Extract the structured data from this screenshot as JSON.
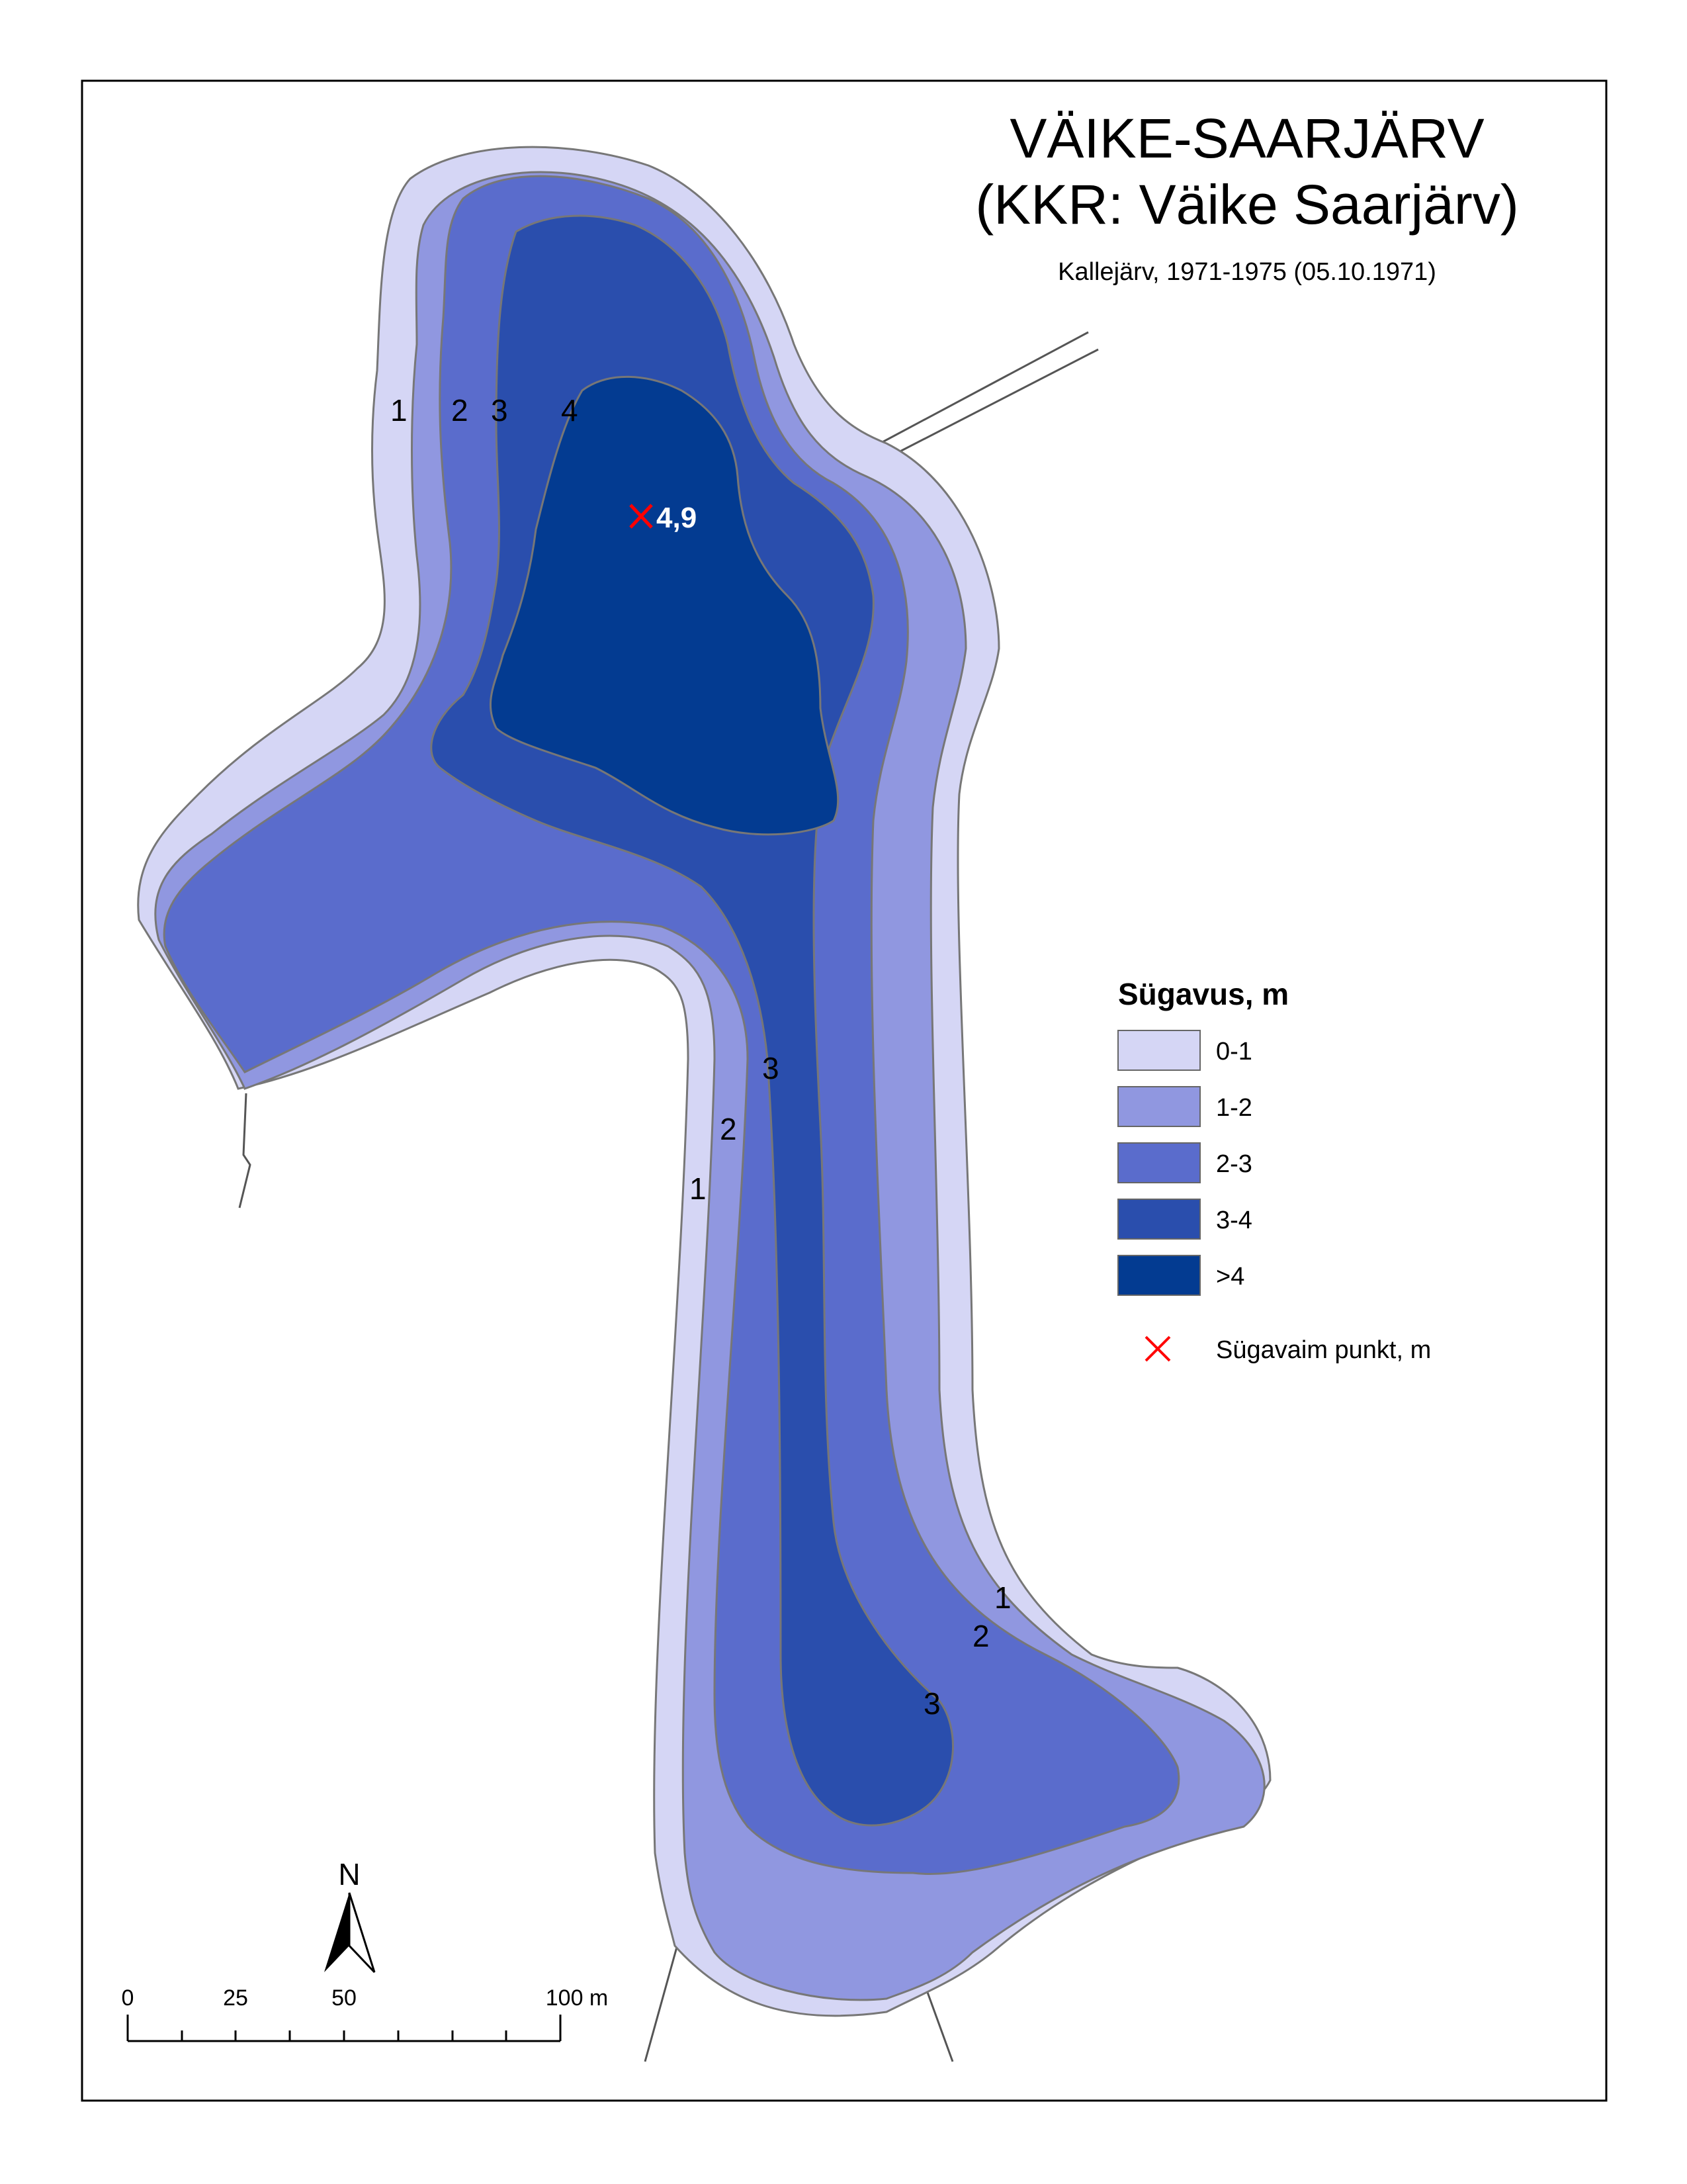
{
  "map": {
    "title": "VÄIKE-SAARJÄRV",
    "subtitle": "(KKR: Väike Saarjärv)",
    "source": "Kallejärv, 1971-1975 (05.10.1971)"
  },
  "deepest_point": {
    "label": "4,9",
    "depth_m": 4.9
  },
  "contour_labels": {
    "north": [
      "1",
      "2",
      "3",
      "4"
    ],
    "middle": [
      "3",
      "2",
      "1"
    ],
    "south": [
      "1",
      "2",
      "3"
    ]
  },
  "legend": {
    "title": "Sügavus, m",
    "classes": [
      {
        "label": "0-1",
        "color": "#d5d6f5"
      },
      {
        "label": "1-2",
        "color": "#9097e0"
      },
      {
        "label": "2-3",
        "color": "#5a6ccc"
      },
      {
        "label": "3-4",
        "color": "#2a4ead"
      },
      {
        "label": ">4",
        "color": "#033b91"
      }
    ],
    "deepest_point_label": "Sügavaim punkt, m",
    "deepest_point_color": "#ff0000"
  },
  "north_arrow": {
    "label": "N"
  },
  "scale_bar": {
    "ticks": [
      "0",
      "25",
      "50",
      "100 m"
    ]
  }
}
